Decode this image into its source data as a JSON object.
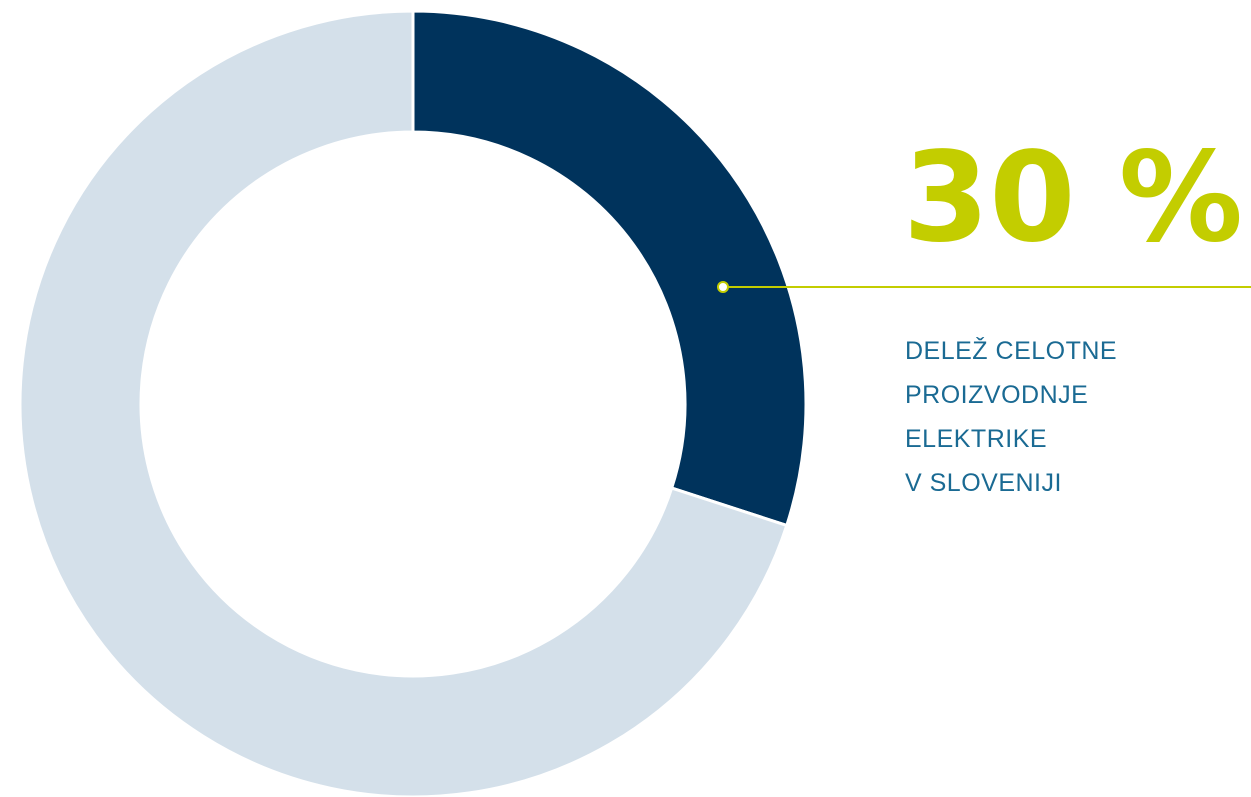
{
  "chart_data": {
    "type": "donut",
    "values": [
      30,
      70
    ],
    "value_labels": [
      "30 %",
      null
    ],
    "colors": [
      "#00335c",
      "#d4e0ea"
    ],
    "annotation": [
      "DELEŽ CELOTNE",
      "PROIZVODNJE",
      "ELEKTRIKE",
      "V SLOVENIJI"
    ]
  }
}
